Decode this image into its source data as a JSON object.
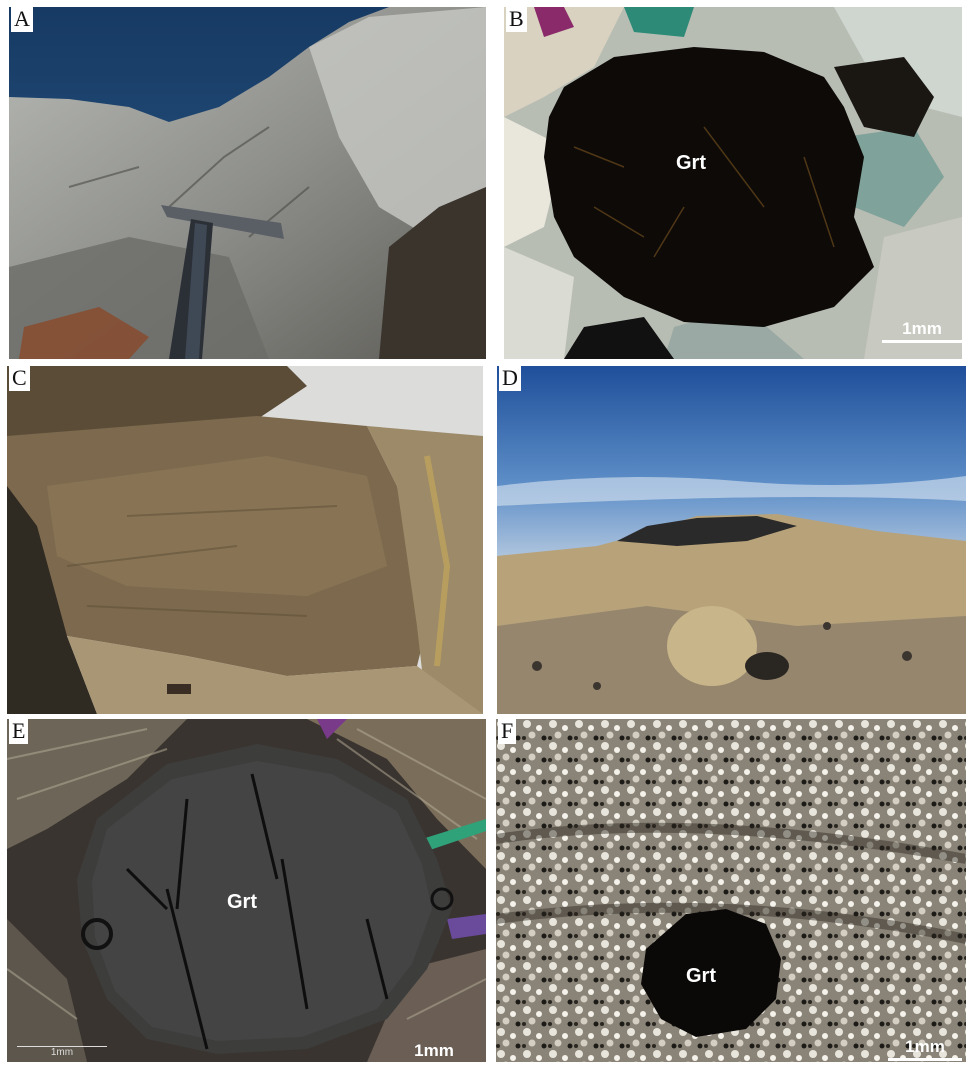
{
  "panels": [
    {
      "letter": "A"
    },
    {
      "letter": "B",
      "mineral_label": "Grt",
      "scale_label": "1mm"
    },
    {
      "letter": "C"
    },
    {
      "letter": "D"
    },
    {
      "letter": "E",
      "mineral_label": "Grt",
      "scale_label": "1mm",
      "minor_scale_label": "1mm"
    },
    {
      "letter": "F",
      "mineral_label": "Grt",
      "scale_label": "1mm"
    }
  ]
}
